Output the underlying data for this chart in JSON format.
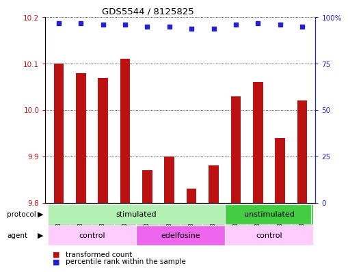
{
  "title": "GDS5544 / 8125825",
  "samples": [
    "GSM1084272",
    "GSM1084273",
    "GSM1084274",
    "GSM1084275",
    "GSM1084276",
    "GSM1084277",
    "GSM1084278",
    "GSM1084279",
    "GSM1084260",
    "GSM1084261",
    "GSM1084262",
    "GSM1084263"
  ],
  "bar_values": [
    10.1,
    10.08,
    10.07,
    10.11,
    9.87,
    9.9,
    9.83,
    9.88,
    10.03,
    10.06,
    9.94,
    10.02
  ],
  "percentile_values": [
    97,
    97,
    96,
    96,
    95,
    95,
    94,
    94,
    96,
    97,
    96,
    95
  ],
  "bar_color": "#bb1111",
  "percentile_color": "#2222cc",
  "ylim_left": [
    9.8,
    10.2
  ],
  "ylim_right": [
    0,
    100
  ],
  "yticks_left": [
    9.8,
    9.9,
    10.0,
    10.1,
    10.2
  ],
  "yticks_right": [
    0,
    25,
    50,
    75,
    100
  ],
  "ytick_labels_right": [
    "0",
    "25",
    "50",
    "75",
    "100%"
  ],
  "protocol_groups": [
    {
      "label": "stimulated",
      "start": 0,
      "end": 7,
      "color": "#b3f0b3"
    },
    {
      "label": "unstimulated",
      "start": 8,
      "end": 11,
      "color": "#44cc44"
    }
  ],
  "agent_groups": [
    {
      "label": "control",
      "start": 0,
      "end": 3,
      "color": "#ffccff"
    },
    {
      "label": "edelfosine",
      "start": 4,
      "end": 7,
      "color": "#ee66ee"
    },
    {
      "label": "control",
      "start": 8,
      "end": 11,
      "color": "#ffccff"
    }
  ],
  "legend_bar_label": "transformed count",
  "legend_pct_label": "percentile rank within the sample",
  "protocol_label": "protocol",
  "agent_label": "agent",
  "background_color": "#ffffff",
  "bar_width": 0.45,
  "xtick_bg_color": "#cccccc",
  "chart_border_color": "#000000"
}
